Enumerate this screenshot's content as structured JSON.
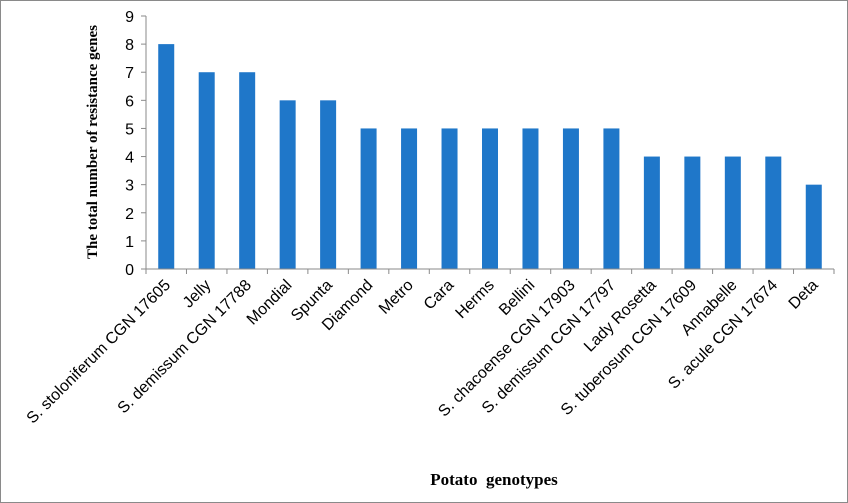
{
  "chart_data": {
    "type": "bar",
    "xlabel": "Potato  genotypes",
    "ylabel": "The total number of resistance genes",
    "ylim": [
      0,
      9
    ],
    "yticks": [
      "0",
      "1",
      "2",
      "3",
      "4",
      "5",
      "6",
      "7",
      "8",
      "9"
    ],
    "grid": false,
    "bar_color": "#1f77c9",
    "categories": [
      "S. stoloniferum CGN 17605",
      "Jelly",
      "S. demissum CGN 17788",
      "Mondial",
      "Spunta",
      "Diamond",
      "Metro",
      "Cara",
      "Herms",
      "Bellini",
      "S. chacoense CGN 17903",
      "S. demissum CGN 17797",
      "Lady Rosetta",
      "S. tuberosum CGN 17609",
      "Annabelle",
      "S. acule CGN 17674",
      "Deta"
    ],
    "values": [
      8,
      7,
      7,
      6,
      6,
      5,
      5,
      5,
      5,
      5,
      5,
      5,
      4,
      4,
      4,
      4,
      3
    ]
  }
}
